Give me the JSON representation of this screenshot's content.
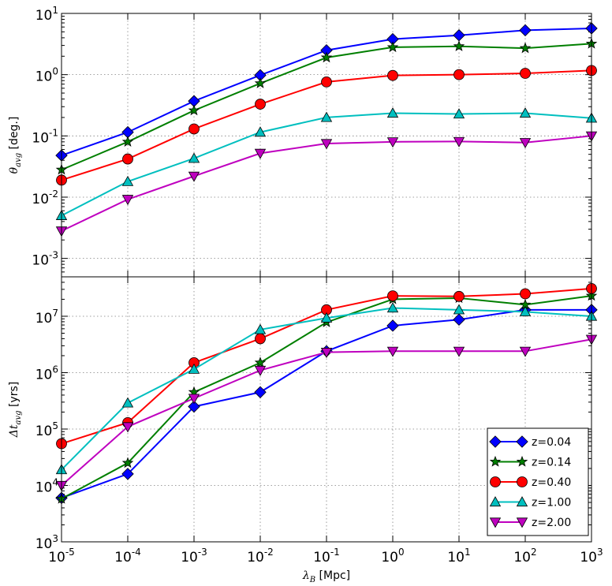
{
  "chart_data": {
    "type": "line",
    "x_scale": "log",
    "x": [
      1e-05,
      0.0001,
      0.001,
      0.01,
      0.1,
      1,
      10,
      100,
      1000
    ],
    "x_ticks": [
      {
        "base": "10",
        "exp": "-5"
      },
      {
        "base": "10",
        "exp": "-4"
      },
      {
        "base": "10",
        "exp": "-3"
      },
      {
        "base": "10",
        "exp": "-2"
      },
      {
        "base": "10",
        "exp": "-1"
      },
      {
        "base": "10",
        "exp": "0"
      },
      {
        "base": "10",
        "exp": "1"
      },
      {
        "base": "10",
        "exp": "2"
      },
      {
        "base": "10",
        "exp": "3"
      }
    ],
    "xlim": [
      1e-05,
      1000
    ],
    "xlabel": {
      "symbol": "λ",
      "sub": "B",
      "unit": " [Mpc]"
    },
    "legend_position": "lower-right",
    "panels": [
      {
        "name": "angle",
        "ylabel": {
          "symbol": "θ",
          "sub": "avg",
          "unit": " [deg.]"
        },
        "y_scale": "log",
        "ylim": [
          0.0005,
          10
        ],
        "y_ticks": [
          {
            "value": 0.001,
            "base": "10",
            "exp": "-3"
          },
          {
            "value": 0.01,
            "base": "10",
            "exp": "-2"
          },
          {
            "value": 0.1,
            "base": "10",
            "exp": "-1"
          },
          {
            "value": 1,
            "base": "10",
            "exp": "0"
          },
          {
            "value": 10,
            "base": "10",
            "exp": "1"
          }
        ],
        "series": [
          {
            "name": "z=0.04",
            "values": [
              0.048,
              0.115,
              0.37,
              0.98,
              2.5,
              3.8,
              4.4,
              5.3,
              5.7
            ]
          },
          {
            "name": "z=0.14",
            "values": [
              0.028,
              0.08,
              0.26,
              0.72,
              1.9,
              2.8,
              2.9,
              2.7,
              3.2
            ]
          },
          {
            "name": "z=0.40",
            "values": [
              0.019,
              0.042,
              0.13,
              0.33,
              0.76,
              0.97,
              1.0,
              1.05,
              1.17
            ]
          },
          {
            "name": "z=1.00",
            "values": [
              0.005,
              0.018,
              0.043,
              0.115,
              0.2,
              0.235,
              0.228,
              0.235,
              0.195
            ]
          },
          {
            "name": "z=2.00",
            "values": [
              0.0028,
              0.0092,
              0.022,
              0.052,
              0.075,
              0.08,
              0.081,
              0.078,
              0.1
            ]
          }
        ]
      },
      {
        "name": "time",
        "ylabel": {
          "symbol": "Δt",
          "sub": "avg",
          "unit": " [yrs]"
        },
        "y_scale": "log",
        "ylim": [
          1000,
          50000000
        ],
        "y_ticks": [
          {
            "value": 1000,
            "base": "10",
            "exp": "3"
          },
          {
            "value": 10000,
            "base": "10",
            "exp": "4"
          },
          {
            "value": 100000,
            "base": "10",
            "exp": "5"
          },
          {
            "value": 1000000,
            "base": "10",
            "exp": "6"
          },
          {
            "value": 10000000,
            "base": "10",
            "exp": "7"
          }
        ],
        "series": [
          {
            "name": "z=0.04",
            "values": [
              6000,
              16000,
              250000,
              450000,
              2400000,
              6800000,
              8700000,
              13000000,
              13000000
            ]
          },
          {
            "name": "z=0.14",
            "values": [
              5800,
              25000,
              450000,
              1500000,
              7800000,
              20000000,
              21000000,
              16000000,
              23000000
            ]
          },
          {
            "name": "z=0.40",
            "values": [
              55000,
              130000,
              1500000,
              4000000,
              13000000,
              23000000,
              22500000,
              25000000,
              31000000
            ]
          },
          {
            "name": "z=1.00",
            "values": [
              19000,
              290000,
              1150000,
              5800000,
              9300000,
              14000000,
              13000000,
              12000000,
              10000000
            ]
          },
          {
            "name": "z=2.00",
            "values": [
              10000,
              110000,
              350000,
              1100000,
              2300000,
              2400000,
              2400000,
              2400000,
              3900000
            ]
          }
        ]
      }
    ]
  },
  "legend": [
    {
      "label": "z=0.04",
      "marker": "diamond",
      "color": "#0000ff"
    },
    {
      "label": "z=0.14",
      "marker": "star",
      "color": "#007f00"
    },
    {
      "label": "z=0.40",
      "marker": "circle",
      "color": "#ff0000"
    },
    {
      "label": "z=1.00",
      "marker": "triangle-up",
      "color": "#00bfbf"
    },
    {
      "label": "z=2.00",
      "marker": "triangle-down",
      "color": "#bf00bf"
    }
  ]
}
